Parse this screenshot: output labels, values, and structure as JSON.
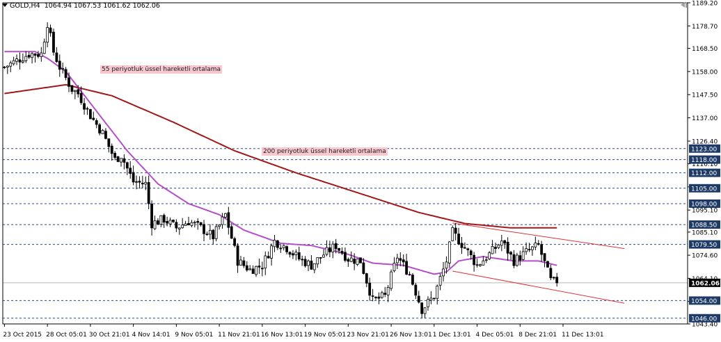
{
  "header": {
    "symbol_period": "GOLD,H4",
    "ohlc": "1064.94 1067.53 1061.62 1062.06"
  },
  "annotations": {
    "ema55": "55 periyotluk üssel hareketli ortalama",
    "ema200": "200 periyotluk üssel hareketli ortalama"
  },
  "colors": {
    "bull_candle": "#000000",
    "bear_candle": "#000000",
    "ema55": "#b54fc9",
    "ema200": "#a01818",
    "channel": "#e0303a",
    "hline": "#2a4a8a",
    "label_bg": "#1e3a66",
    "annotation_bg": "#f8c8d0"
  },
  "icons": {
    "menu": "triangle-down-icon",
    "scroll_to_end": "shift-arrow-icon"
  },
  "chart_data": {
    "type": "candlestick",
    "symbol": "GOLD",
    "timeframe": "H4",
    "ylim": [
      1043.4,
      1189.2
    ],
    "y_ticks": [
      "1189.20",
      "1178.70",
      "1168.50",
      "1158.00",
      "1147.50",
      "1137.00",
      "1126.40",
      "1116.10",
      "1105.60",
      "1095.10",
      "1085.10",
      "1074.60",
      "1064.10",
      "1053.60",
      "1043.40"
    ],
    "x_labels": [
      "23 Oct 2015",
      "28 Oct 05:01",
      "30 Oct 21:01",
      "4 Nov 14:01",
      "9 Nov 05:01",
      "11 Nov 21:01",
      "16 Nov 13:01",
      "19 Nov 05:01",
      "23 Nov 21:01",
      "26 Nov 13:01",
      "1 Dec 13:01",
      "4 Dec 05:01",
      "8 Dec 21:01",
      "11 Dec 13:01"
    ],
    "horizontal_levels": [
      "1123.00",
      "1118.00",
      "1112.00",
      "1105.00",
      "1098.00",
      "1088.50",
      "1079.50",
      "1054.00",
      "1046.00"
    ],
    "current_price": "1062.06",
    "close_path": [
      [
        0,
        1160
      ],
      [
        8,
        1166
      ],
      [
        12,
        1166
      ],
      [
        14,
        1180
      ],
      [
        16,
        1167
      ],
      [
        18,
        1160
      ],
      [
        22,
        1150
      ],
      [
        24,
        1148
      ],
      [
        28,
        1138
      ],
      [
        32,
        1130
      ],
      [
        36,
        1118
      ],
      [
        38,
        1120
      ],
      [
        42,
        1108
      ],
      [
        46,
        1107
      ],
      [
        48,
        1089
      ],
      [
        52,
        1091
      ],
      [
        56,
        1087
      ],
      [
        60,
        1090
      ],
      [
        64,
        1087
      ],
      [
        68,
        1083
      ],
      [
        72,
        1093
      ],
      [
        76,
        1072
      ],
      [
        80,
        1068
      ],
      [
        84,
        1070
      ],
      [
        88,
        1081
      ],
      [
        92,
        1078
      ],
      [
        96,
        1073
      ],
      [
        100,
        1070
      ],
      [
        104,
        1075
      ],
      [
        108,
        1079
      ],
      [
        112,
        1073
      ],
      [
        116,
        1072
      ],
      [
        120,
        1054
      ],
      [
        124,
        1056
      ],
      [
        128,
        1074
      ],
      [
        132,
        1066
      ],
      [
        136,
        1050
      ],
      [
        140,
        1056
      ],
      [
        144,
        1072
      ],
      [
        146,
        1085
      ],
      [
        150,
        1078
      ],
      [
        154,
        1070
      ],
      [
        158,
        1075
      ],
      [
        162,
        1081
      ],
      [
        166,
        1072
      ],
      [
        170,
        1076
      ],
      [
        174,
        1079
      ],
      [
        178,
        1063
      ],
      [
        180,
        1062
      ]
    ],
    "ema55_path": [
      [
        0,
        1167
      ],
      [
        10,
        1167
      ],
      [
        14,
        1164
      ],
      [
        20,
        1158
      ],
      [
        30,
        1140
      ],
      [
        40,
        1122
      ],
      [
        50,
        1107
      ],
      [
        60,
        1098
      ],
      [
        70,
        1093
      ],
      [
        78,
        1086
      ],
      [
        84,
        1083
      ],
      [
        90,
        1080
      ],
      [
        100,
        1079
      ],
      [
        112,
        1075
      ],
      [
        120,
        1071
      ],
      [
        130,
        1070
      ],
      [
        140,
        1066
      ],
      [
        144,
        1067
      ],
      [
        148,
        1072
      ],
      [
        156,
        1074
      ],
      [
        166,
        1072
      ],
      [
        174,
        1072
      ],
      [
        180,
        1070
      ]
    ],
    "ema200_path": [
      [
        0,
        1148
      ],
      [
        20,
        1152
      ],
      [
        35,
        1147
      ],
      [
        55,
        1135
      ],
      [
        75,
        1122
      ],
      [
        95,
        1112
      ],
      [
        115,
        1103
      ],
      [
        135,
        1094
      ],
      [
        150,
        1089
      ],
      [
        165,
        1087
      ],
      [
        180,
        1087
      ]
    ],
    "channel_upper": [
      [
        146,
        1089.2
      ],
      [
        202,
        1077.6
      ]
    ],
    "channel_lower": [
      [
        146,
        1067.4
      ],
      [
        202,
        1052.8
      ]
    ]
  }
}
